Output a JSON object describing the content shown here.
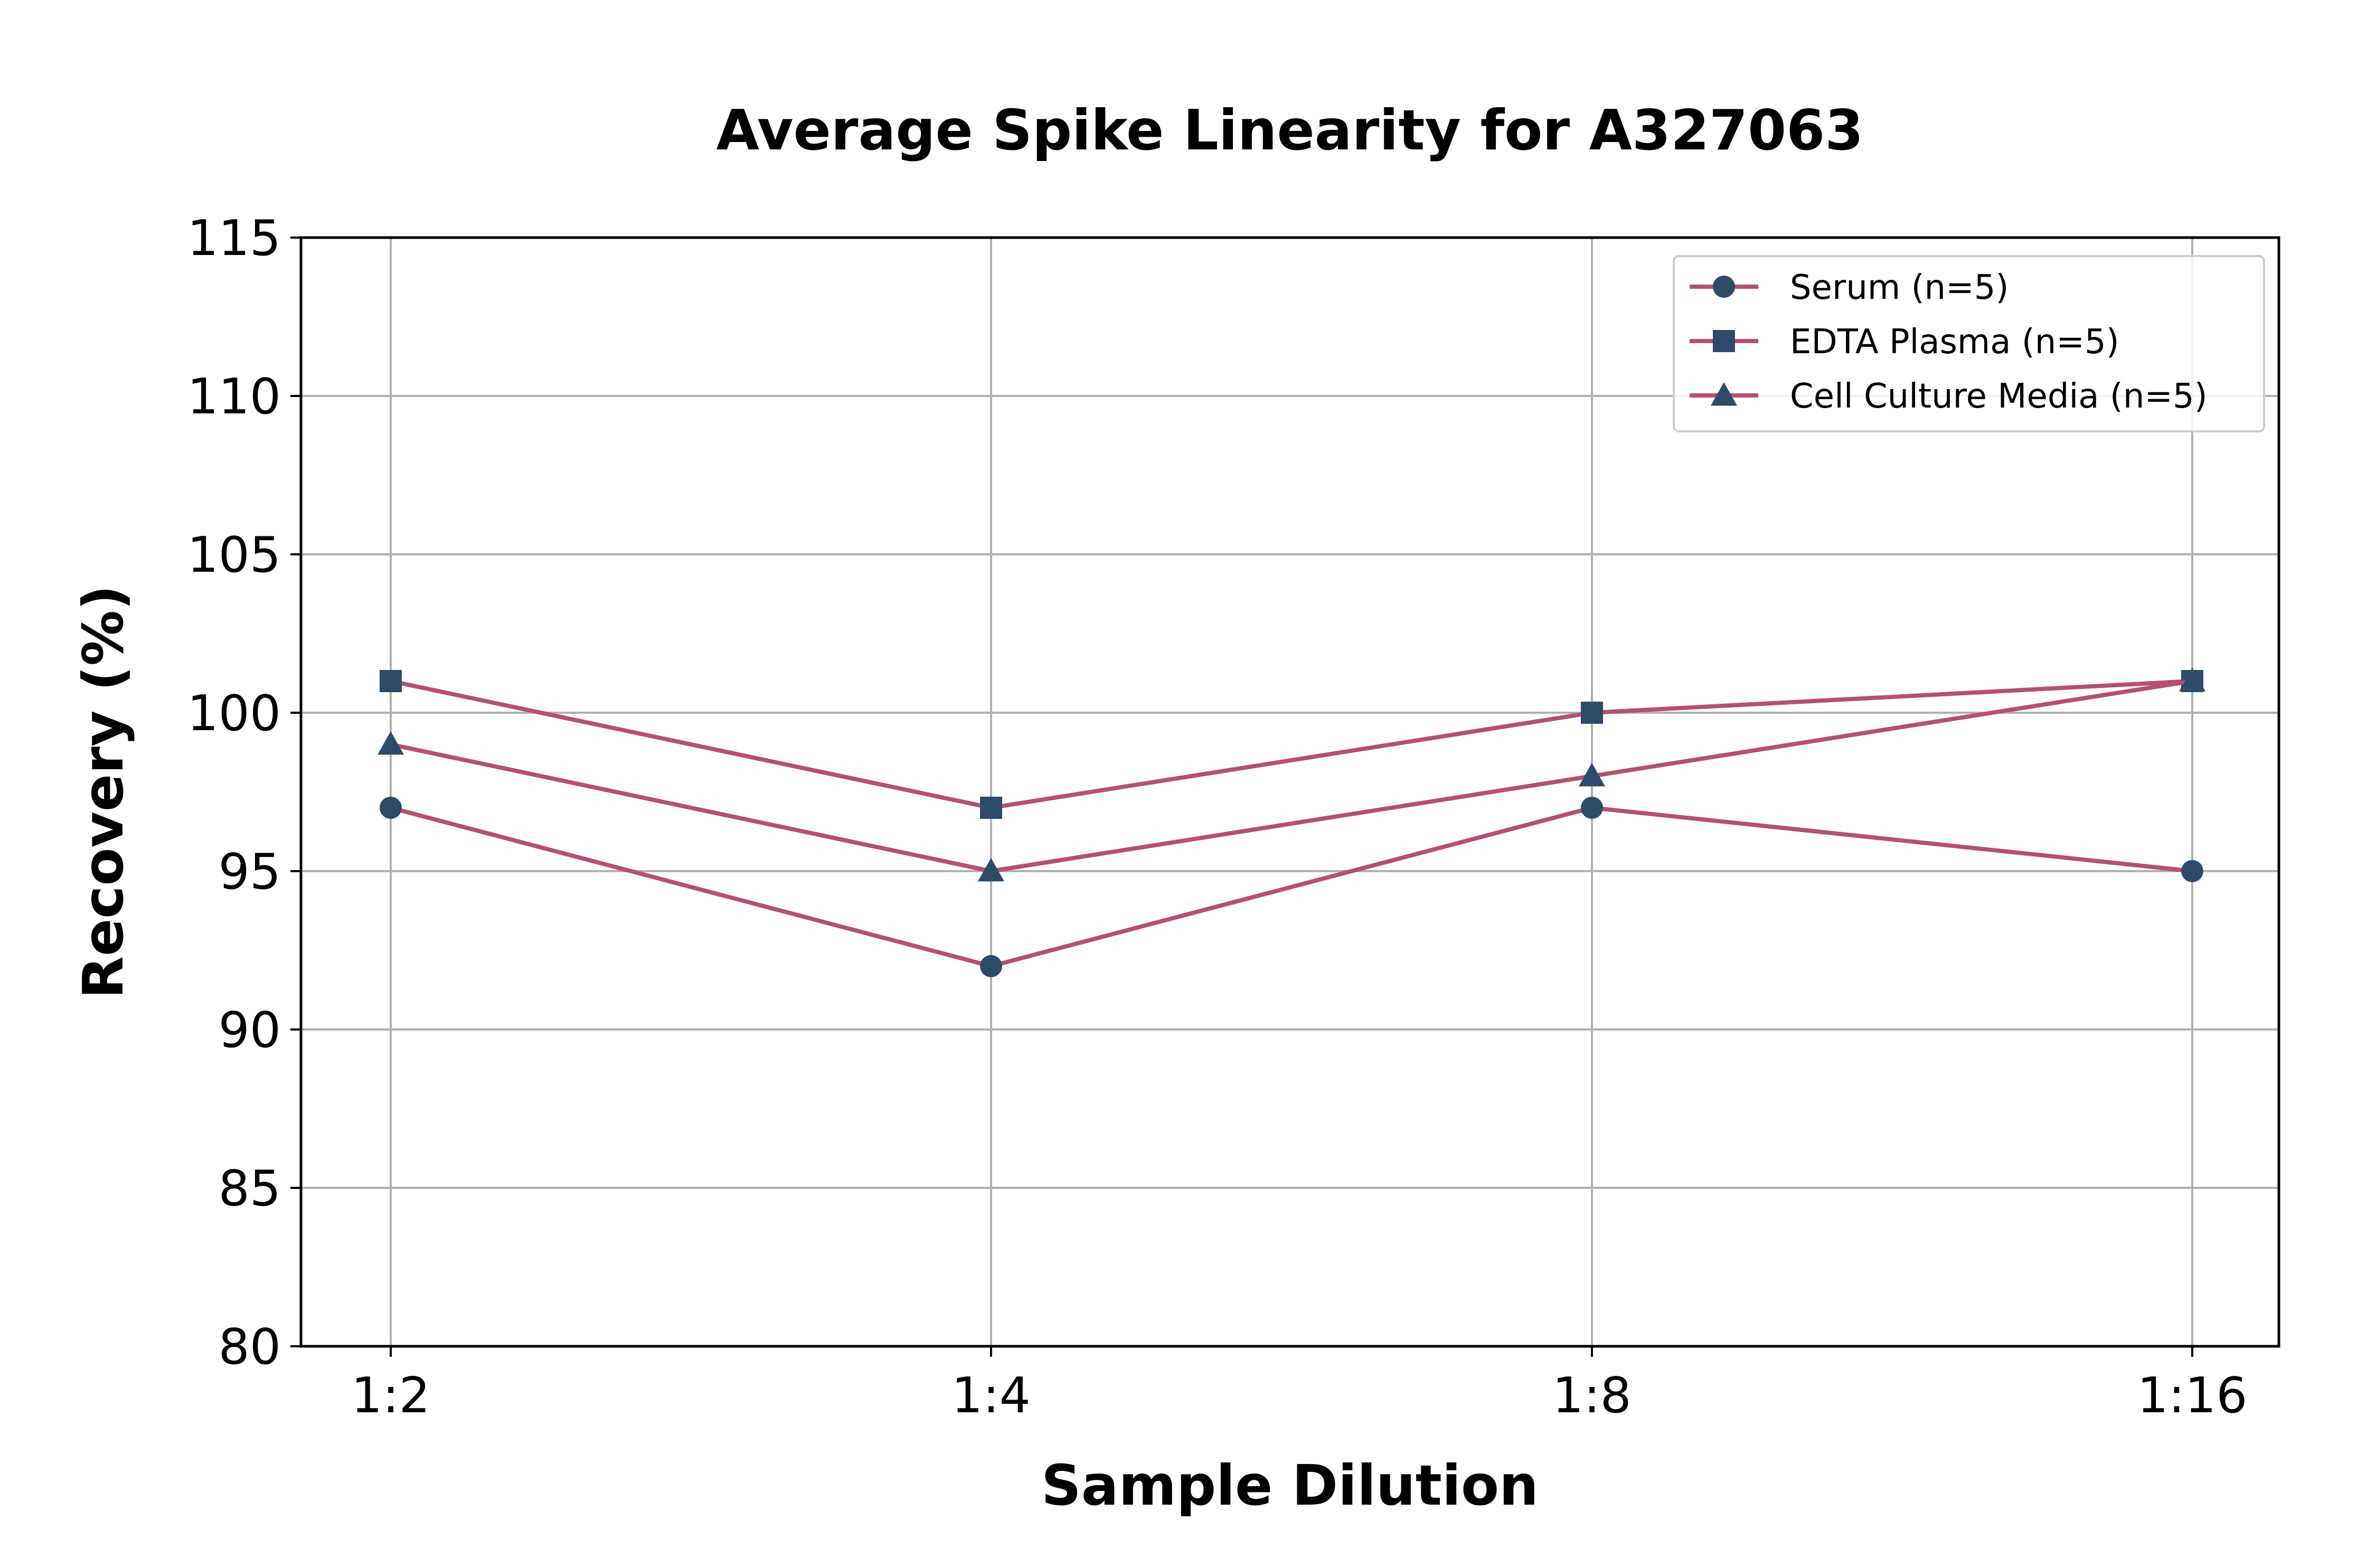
{
  "chart_data": {
    "type": "line",
    "title": "Average Spike Linearity for A327063",
    "xlabel": "Sample Dilution",
    "ylabel": "Recovery (%)",
    "categories": [
      "1:2",
      "1:4",
      "1:8",
      "1:16"
    ],
    "ylim": [
      80,
      115
    ],
    "yticks": [
      80,
      85,
      90,
      95,
      100,
      105,
      110,
      115
    ],
    "grid": true,
    "legend_position": "top-right",
    "line_color": "#b5506f",
    "marker_color": "#2d4a6b",
    "series": [
      {
        "name": "Serum (n=5)",
        "marker": "circle",
        "values": [
          97,
          92,
          97,
          95
        ]
      },
      {
        "name": "EDTA Plasma (n=5)",
        "marker": "square",
        "values": [
          101,
          97,
          100,
          101
        ]
      },
      {
        "name": "Cell Culture Media (n=5)",
        "marker": "triangle",
        "values": [
          99,
          95,
          98,
          101
        ]
      }
    ]
  }
}
